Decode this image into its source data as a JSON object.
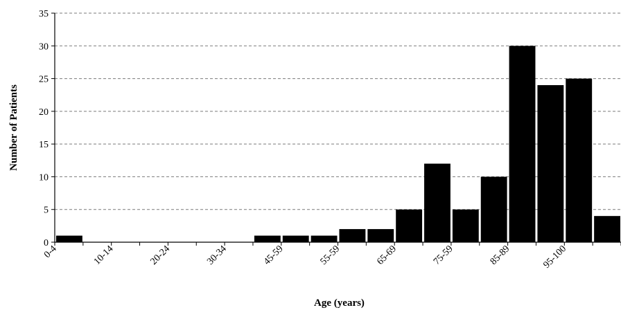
{
  "chart_data": {
    "type": "bar",
    "title": "",
    "xlabel": "Age (years)",
    "ylabel": "Number of Patients",
    "ylim": [
      0,
      35
    ],
    "yticks": [
      0,
      5,
      10,
      15,
      20,
      25,
      30,
      35
    ],
    "grid": "horizontal dashed",
    "bar_color": "#000000",
    "categories": [
      "0-4",
      "",
      "10-14",
      "",
      "20-24",
      "",
      "30-34",
      "",
      "45-59",
      "",
      "55-59",
      "",
      "65-69",
      "",
      "75-59",
      "",
      "85-89",
      "",
      "95-100",
      ""
    ],
    "visible_tick_labels": [
      "0-4",
      "10-14",
      "20-24",
      "30-34",
      "45-59",
      "55-59",
      "65-69",
      "75-59",
      "85-89",
      "95-100"
    ],
    "values": [
      1,
      0,
      0,
      0,
      0,
      0,
      0,
      1,
      1,
      1,
      2,
      2,
      5,
      12,
      5,
      10,
      30,
      24,
      25,
      4
    ]
  }
}
